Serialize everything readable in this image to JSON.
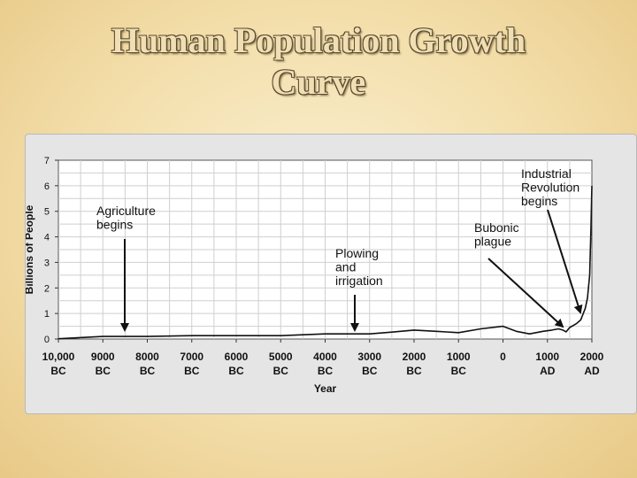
{
  "slide": {
    "title_line1": "Human Population Growth",
    "title_line2": "Curve"
  },
  "chart_data": {
    "type": "line",
    "title": "",
    "xlabel": "Year",
    "ylabel": "Billions of People",
    "ylim": [
      0,
      7
    ],
    "xlim": [
      -10000,
      2000
    ],
    "grid": true,
    "x_ticks": [
      {
        "value": -10000,
        "line1": "10,000",
        "line2": "BC"
      },
      {
        "value": -9000,
        "line1": "9000",
        "line2": "BC"
      },
      {
        "value": -8000,
        "line1": "8000",
        "line2": "BC"
      },
      {
        "value": -7000,
        "line1": "7000",
        "line2": "BC"
      },
      {
        "value": -6000,
        "line1": "6000",
        "line2": "BC"
      },
      {
        "value": -5000,
        "line1": "5000",
        "line2": "BC"
      },
      {
        "value": -4000,
        "line1": "4000",
        "line2": "BC"
      },
      {
        "value": -3000,
        "line1": "3000",
        "line2": "BC"
      },
      {
        "value": -2000,
        "line1": "2000",
        "line2": "BC"
      },
      {
        "value": -1000,
        "line1": "1000",
        "line2": "BC"
      },
      {
        "value": 0,
        "line1": "0",
        "line2": ""
      },
      {
        "value": 1000,
        "line1": "1000",
        "line2": "AD"
      },
      {
        "value": 2000,
        "line1": "2000",
        "line2": "AD"
      }
    ],
    "y_ticks": [
      "0",
      "1",
      "2",
      "3",
      "4",
      "5",
      "6",
      "7"
    ],
    "series": [
      {
        "x": [
          -10000,
          -9000,
          -8000,
          -7000,
          -6000,
          -5000,
          -4000,
          -3000,
          -2500,
          -2000,
          -1500,
          -1000,
          -500,
          0,
          300,
          600,
          900,
          1100,
          1250,
          1350,
          1420,
          1500,
          1650,
          1750,
          1850,
          1900,
          1950,
          1980,
          2000
        ],
        "y": [
          0.01,
          0.1,
          0.1,
          0.13,
          0.13,
          0.13,
          0.2,
          0.2,
          0.27,
          0.35,
          0.3,
          0.25,
          0.4,
          0.5,
          0.3,
          0.2,
          0.3,
          0.35,
          0.4,
          0.35,
          0.28,
          0.45,
          0.6,
          0.75,
          1.2,
          1.6,
          2.5,
          4.4,
          6.0
        ]
      }
    ],
    "annotations": [
      {
        "lines": [
          "Agriculture",
          "begins"
        ],
        "arrow_x": -8500,
        "arrow_y": 0.3
      },
      {
        "lines": [
          "Plowing",
          "and",
          "irrigation"
        ],
        "arrow_x": -3300,
        "arrow_y": 0.4
      },
      {
        "lines": [
          "Bubonic",
          "plague"
        ],
        "arrow_x": 1330,
        "arrow_y": 0.5
      },
      {
        "lines": [
          "Industrial",
          "Revolution",
          "begins"
        ],
        "arrow_x": 1730,
        "arrow_y": 0.95
      }
    ]
  }
}
